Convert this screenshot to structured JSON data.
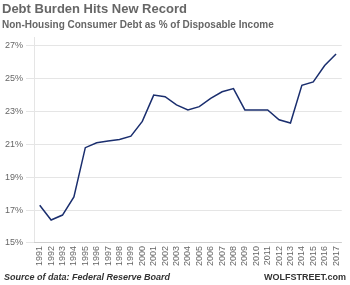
{
  "chart_data": {
    "type": "line",
    "title": "Debt Burden Hits New Record",
    "subtitle": "Non-Housing Consumer Debt as % of Disposable Income",
    "annotations": [
      "Source of data: Federal Reserve Board",
      "WOLFSTREET.com"
    ],
    "x": [
      1991,
      1992,
      1993,
      1994,
      1995,
      1996,
      1997,
      1998,
      1999,
      2000,
      2001,
      2002,
      2003,
      2004,
      2005,
      2006,
      2007,
      2008,
      2009,
      2010,
      2011,
      2012,
      2013,
      2014,
      2015,
      2016,
      2017
    ],
    "values": [
      17.3,
      16.4,
      16.7,
      17.8,
      20.8,
      21.1,
      21.2,
      21.3,
      21.5,
      22.4,
      24.0,
      23.9,
      23.4,
      23.1,
      23.3,
      23.8,
      24.2,
      24.4,
      23.1,
      23.1,
      23.1,
      22.5,
      22.3,
      24.6,
      24.8,
      25.8,
      26.5
    ],
    "color": "#1a2e6e",
    "xlim": [
      1990.5,
      2017.5
    ],
    "xticks": [
      1991,
      1992,
      1993,
      1994,
      1995,
      1996,
      1997,
      1998,
      1999,
      2000,
      2001,
      2002,
      2003,
      2004,
      2005,
      2006,
      2007,
      2008,
      2009,
      2010,
      2011,
      2012,
      2013,
      2014,
      2015,
      2016,
      2017
    ],
    "ylim": [
      15,
      27.5
    ],
    "yticks": [
      {
        "value": 15,
        "label": "15%"
      },
      {
        "value": 17,
        "label": "17%"
      },
      {
        "value": 19,
        "label": "19%"
      },
      {
        "value": 21,
        "label": "21%"
      },
      {
        "value": 23,
        "label": "23%"
      },
      {
        "value": 25,
        "label": "25%"
      },
      {
        "value": 27,
        "label": "27%"
      }
    ],
    "grid": true
  }
}
